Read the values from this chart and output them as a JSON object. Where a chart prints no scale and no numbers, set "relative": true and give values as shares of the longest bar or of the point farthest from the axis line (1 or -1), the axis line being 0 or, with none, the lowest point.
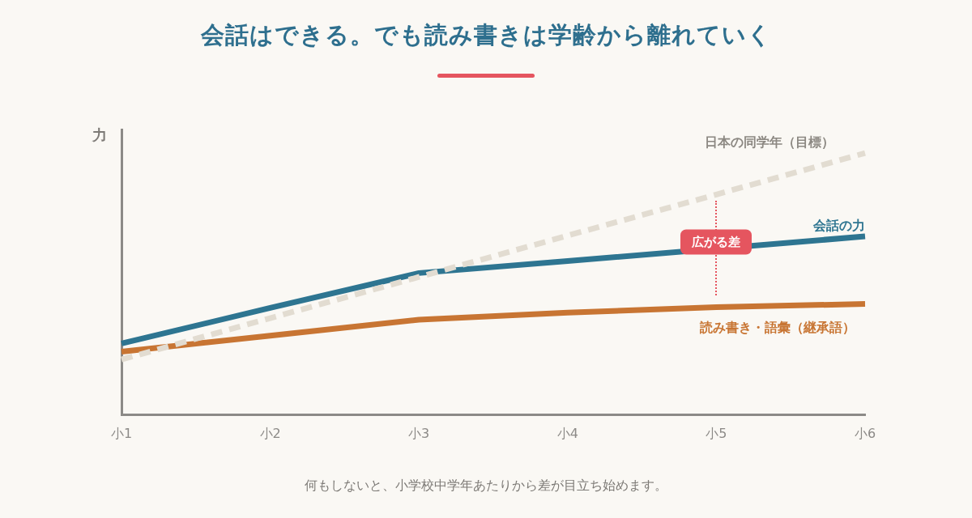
{
  "chart_data": {
    "type": "line",
    "title": "会話はできる。でも読み書きは学齢から離れていく",
    "ylabel": "力",
    "categories": [
      "小1",
      "小2",
      "小3",
      "小4",
      "小5",
      "小6"
    ],
    "relative": true,
    "legend": false,
    "grid": false,
    "tick_labels": "x",
    "marker": "none",
    "series": [
      {
        "name": "日本の同学年（目標）",
        "color": "#e2dcd1",
        "line_style": "dashed",
        "values": [
          0.212,
          0.37,
          0.527,
          0.685,
          0.842,
          1
        ]
      },
      {
        "name": "会話の力",
        "color": "#2e7591",
        "line_style": "solid",
        "values": [
          0.273,
          0.409,
          0.542,
          0.588,
          null,
          0.682
        ]
      },
      {
        "name": "読み書き・語彙（継承語）",
        "color": "#c87533",
        "line_style": "solid",
        "values": [
          0.242,
          0.303,
          0.364,
          0.391,
          0.412,
          0.424
        ]
      }
    ],
    "annotations": [
      {
        "text": "広がる差",
        "x": "小5",
        "y": 0.66
      },
      "何もしないと、小学校中学年あたりから差が目立ち始めます。"
    ]
  }
}
